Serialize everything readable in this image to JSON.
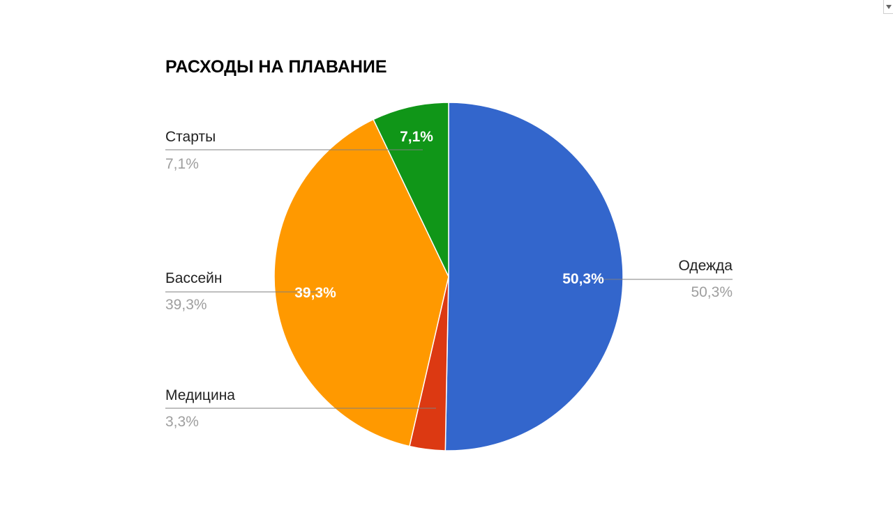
{
  "chart_data": {
    "type": "pie",
    "title": "РАСХОДЫ НА ПЛАВАНИЕ",
    "slices": [
      {
        "name": "Одежда",
        "value": 50.3,
        "label": "50,3%",
        "color": "#3366cc"
      },
      {
        "name": "Медицина",
        "value": 3.3,
        "label": "3,3%",
        "color": "#dc3912"
      },
      {
        "name": "Бассейн",
        "value": 39.3,
        "label": "39,3%",
        "color": "#ff9900"
      },
      {
        "name": "Старты",
        "value": 7.1,
        "label": "7,1%",
        "color": "#109618"
      }
    ],
    "legend": "labeled",
    "start_angle": 0,
    "direction": "clockwise"
  },
  "colors": {
    "title": "#000000",
    "legend_name": "#222222",
    "legend_value": "#9e9e9e",
    "leader": "#7f7f7f",
    "inner_label": "#ffffff"
  },
  "icons": {
    "menu": "chevron-down-icon"
  }
}
